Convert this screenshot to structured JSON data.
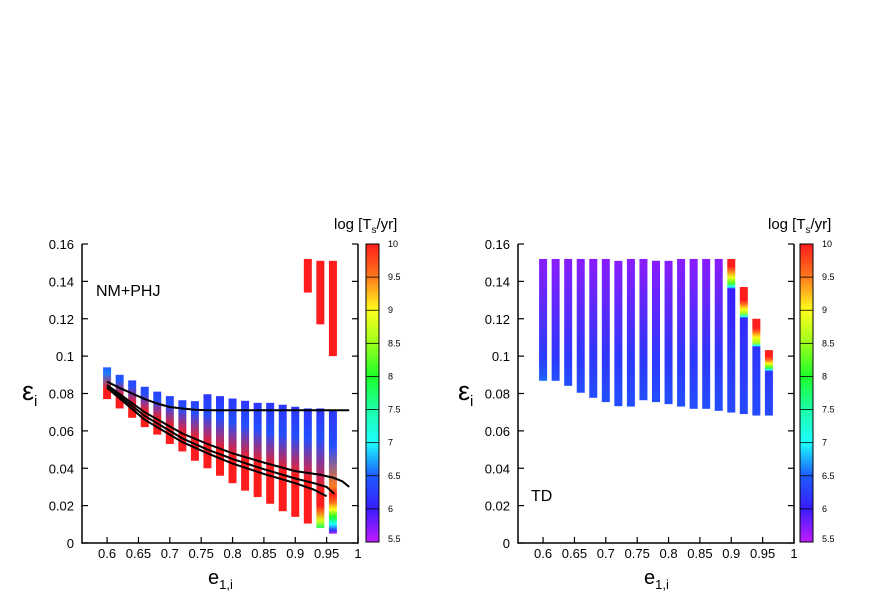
{
  "colormap": {
    "range": [
      5.5,
      10
    ],
    "stops": [
      [
        5.5,
        "#c01cff"
      ],
      [
        6.0,
        "#3a1cff"
      ],
      [
        6.5,
        "#1c5cff"
      ],
      [
        7.0,
        "#1cffff"
      ],
      [
        7.5,
        "#1cffa8"
      ],
      [
        8.0,
        "#1cff2a"
      ],
      [
        8.5,
        "#9cff1c"
      ],
      [
        9.0,
        "#ffff1c"
      ],
      [
        9.5,
        "#ff7a1c"
      ],
      [
        10.0,
        "#ff1c1c"
      ]
    ],
    "ticks": [
      "5.5",
      "6",
      "6.5",
      "7",
      "7.5",
      "8",
      "8.5",
      "9",
      "9.5",
      "10"
    ],
    "label": {
      "prefix": "log [T",
      "sub": "s",
      "suffix": "/yr]"
    }
  },
  "chart_data": [
    {
      "type": "bar",
      "panel_label": "NM+PHJ",
      "xlabel": {
        "main": "e",
        "sub": "1,i"
      },
      "ylabel": {
        "main": "ε",
        "sub": "i"
      },
      "xlim": [
        0.56,
        1.0
      ],
      "ylim": [
        0,
        0.16
      ],
      "xticks": [
        "0.6",
        "0.65",
        "0.7",
        "0.75",
        "0.8",
        "0.85",
        "0.9",
        "0.95",
        "1"
      ],
      "yticks": [
        "0",
        "0.02",
        "0.04",
        "0.06",
        "0.08",
        "0.1",
        "0.12",
        "0.14",
        "0.16"
      ],
      "bars": [
        {
          "e": 0.6,
          "profile": [
            [
              0.077,
              10
            ],
            [
              0.082,
              10
            ],
            [
              0.091,
              6.6
            ],
            [
              0.094,
              6.5
            ]
          ]
        },
        {
          "e": 0.62,
          "profile": [
            [
              0.072,
              10
            ],
            [
              0.078,
              10
            ],
            [
              0.087,
              6.5
            ],
            [
              0.09,
              6.4
            ]
          ]
        },
        {
          "e": 0.64,
          "profile": [
            [
              0.067,
              10
            ],
            [
              0.074,
              10
            ],
            [
              0.084,
              6.4
            ],
            [
              0.087,
              6.3
            ]
          ]
        },
        {
          "e": 0.66,
          "profile": [
            [
              0.062,
              10
            ],
            [
              0.07,
              10
            ],
            [
              0.08,
              6.4
            ],
            [
              0.0836,
              6.3
            ]
          ]
        },
        {
          "e": 0.68,
          "profile": [
            [
              0.058,
              10
            ],
            [
              0.066,
              10
            ],
            [
              0.077,
              6.4
            ],
            [
              0.081,
              6.3
            ]
          ]
        },
        {
          "e": 0.7,
          "profile": [
            [
              0.053,
              10
            ],
            [
              0.062,
              10
            ],
            [
              0.074,
              6.4
            ],
            [
              0.0786,
              6.3
            ]
          ]
        },
        {
          "e": 0.72,
          "profile": [
            [
              0.049,
              10
            ],
            [
              0.058,
              10
            ],
            [
              0.072,
              6.4
            ],
            [
              0.0764,
              6.3
            ]
          ]
        },
        {
          "e": 0.74,
          "profile": [
            [
              0.044,
              10
            ],
            [
              0.055,
              10
            ],
            [
              0.07,
              6.4
            ],
            [
              0.0759,
              6.3
            ]
          ]
        },
        {
          "e": 0.76,
          "profile": [
            [
              0.04,
              10
            ],
            [
              0.052,
              10
            ],
            [
              0.069,
              6.4
            ],
            [
              0.0796,
              6.2
            ]
          ]
        },
        {
          "e": 0.78,
          "profile": [
            [
              0.036,
              10
            ],
            [
              0.049,
              10
            ],
            [
              0.067,
              6.4
            ],
            [
              0.0786,
              6.2
            ]
          ]
        },
        {
          "e": 0.8,
          "profile": [
            [
              0.032,
              10
            ],
            [
              0.046,
              10
            ],
            [
              0.065,
              6.4
            ],
            [
              0.0773,
              6.2
            ]
          ]
        },
        {
          "e": 0.82,
          "profile": [
            [
              0.028,
              10
            ],
            [
              0.044,
              10
            ],
            [
              0.063,
              6.4
            ],
            [
              0.0761,
              6.2
            ]
          ]
        },
        {
          "e": 0.84,
          "profile": [
            [
              0.0246,
              10
            ],
            [
              0.042,
              10
            ],
            [
              0.061,
              6.4
            ],
            [
              0.075,
              6.2
            ]
          ]
        },
        {
          "e": 0.86,
          "profile": [
            [
              0.021,
              10
            ],
            [
              0.04,
              10
            ],
            [
              0.059,
              6.4
            ],
            [
              0.075,
              6.2
            ]
          ]
        },
        {
          "e": 0.88,
          "profile": [
            [
              0.017,
              10
            ],
            [
              0.038,
              10
            ],
            [
              0.058,
              6.4
            ],
            [
              0.074,
              6.2
            ]
          ]
        },
        {
          "e": 0.9,
          "profile": [
            [
              0.014,
              10
            ],
            [
              0.036,
              10
            ],
            [
              0.057,
              6.4
            ],
            [
              0.0729,
              6.2
            ]
          ]
        },
        {
          "e": 0.92,
          "profile": [
            [
              0.0104,
              10
            ],
            [
              0.033,
              10
            ],
            [
              0.056,
              6.4
            ],
            [
              0.072,
              6.2
            ]
          ]
        },
        {
          "e": 0.94,
          "profile": [
            [
              0.008,
              7.8
            ],
            [
              0.012,
              8.8
            ],
            [
              0.017,
              9.6
            ],
            [
              0.02,
              10
            ],
            [
              0.028,
              10
            ],
            [
              0.056,
              6.4
            ],
            [
              0.072,
              6.2
            ]
          ]
        },
        {
          "e": 0.96,
          "profile": [
            [
              0.005,
              5.6
            ],
            [
              0.007,
              6.3
            ],
            [
              0.01,
              7.0
            ],
            [
              0.014,
              8.0
            ],
            [
              0.018,
              9.0
            ],
            [
              0.022,
              9.6
            ],
            [
              0.026,
              10
            ],
            [
              0.03,
              9.5
            ],
            [
              0.052,
              6.4
            ],
            [
              0.071,
              6.2
            ]
          ]
        },
        {
          "e": 0.92,
          "profile": [
            [
              0.134,
              10
            ],
            [
              0.152,
              10
            ]
          ]
        },
        {
          "e": 0.94,
          "profile": [
            [
              0.117,
              10
            ],
            [
              0.151,
              10
            ]
          ]
        },
        {
          "e": 0.96,
          "profile": [
            [
              0.1,
              10
            ],
            [
              0.151,
              10
            ]
          ]
        }
      ],
      "curves": [
        {
          "points": [
            [
              0.6,
              0.0863
            ],
            [
              0.62,
              0.083
            ],
            [
              0.64,
              0.08
            ],
            [
              0.66,
              0.077
            ],
            [
              0.68,
              0.0746
            ],
            [
              0.7,
              0.0728
            ],
            [
              0.72,
              0.072
            ],
            [
              0.74,
              0.0713
            ],
            [
              0.76,
              0.071
            ],
            [
              0.8,
              0.071
            ],
            [
              0.9,
              0.071
            ],
            [
              0.986,
              0.071
            ]
          ]
        },
        {
          "points": [
            [
              0.6,
              0.0845
            ],
            [
              0.66,
              0.07
            ],
            [
              0.72,
              0.0586
            ],
            [
              0.76,
              0.053
            ],
            [
              0.8,
              0.048
            ],
            [
              0.85,
              0.043
            ],
            [
              0.9,
              0.0385
            ],
            [
              0.94,
              0.0365
            ],
            [
              0.96,
              0.035
            ],
            [
              0.975,
              0.033
            ],
            [
              0.986,
              0.03
            ]
          ]
        },
        {
          "points": [
            [
              0.6,
              0.0838
            ],
            [
              0.66,
              0.068
            ],
            [
              0.72,
              0.056
            ],
            [
              0.76,
              0.05
            ],
            [
              0.8,
              0.045
            ],
            [
              0.85,
              0.0395
            ],
            [
              0.9,
              0.0345
            ],
            [
              0.93,
              0.032
            ],
            [
              0.95,
              0.03
            ],
            [
              0.962,
              0.0264
            ]
          ]
        },
        {
          "points": [
            [
              0.6,
              0.083
            ],
            [
              0.66,
              0.066
            ],
            [
              0.72,
              0.054
            ],
            [
              0.76,
              0.048
            ],
            [
              0.8,
              0.0425
            ],
            [
              0.85,
              0.037
            ],
            [
              0.9,
              0.032
            ],
            [
              0.93,
              0.0285
            ],
            [
              0.95,
              0.025
            ]
          ]
        }
      ]
    },
    {
      "type": "bar",
      "panel_label": "TD",
      "xlabel": {
        "main": "e",
        "sub": "1,i"
      },
      "ylabel": {
        "main": "ε",
        "sub": "i"
      },
      "xlim": [
        0.56,
        1.0
      ],
      "ylim": [
        0,
        0.16
      ],
      "xticks": [
        "0.6",
        "0.65",
        "0.7",
        "0.75",
        "0.8",
        "0.85",
        "0.9",
        "0.95",
        "1"
      ],
      "yticks": [
        "0",
        "0.02",
        "0.04",
        "0.06",
        "0.08",
        "0.1",
        "0.12",
        "0.14",
        "0.16"
      ],
      "bars": [
        {
          "e": 0.6,
          "profile": [
            [
              0.0868,
              6.55
            ],
            [
              0.09,
              6.45
            ],
            [
              0.1,
              6.25
            ],
            [
              0.152,
              5.7
            ]
          ]
        },
        {
          "e": 0.62,
          "profile": [
            [
              0.0868,
              6.4
            ],
            [
              0.1,
              6.2
            ],
            [
              0.152,
              5.7
            ]
          ]
        },
        {
          "e": 0.64,
          "profile": [
            [
              0.0841,
              6.4
            ],
            [
              0.1,
              6.2
            ],
            [
              0.152,
              5.7
            ]
          ]
        },
        {
          "e": 0.66,
          "profile": [
            [
              0.0804,
              6.4
            ],
            [
              0.1,
              6.2
            ],
            [
              0.152,
              5.7
            ]
          ]
        },
        {
          "e": 0.68,
          "profile": [
            [
              0.0777,
              6.4
            ],
            [
              0.1,
              6.2
            ],
            [
              0.152,
              5.7
            ]
          ]
        },
        {
          "e": 0.7,
          "profile": [
            [
              0.0754,
              6.4
            ],
            [
              0.1,
              6.2
            ],
            [
              0.152,
              5.7
            ]
          ]
        },
        {
          "e": 0.72,
          "profile": [
            [
              0.0732,
              6.4
            ],
            [
              0.1,
              6.2
            ],
            [
              0.151,
              5.7
            ]
          ]
        },
        {
          "e": 0.74,
          "profile": [
            [
              0.073,
              6.4
            ],
            [
              0.1,
              6.2
            ],
            [
              0.152,
              5.7
            ]
          ]
        },
        {
          "e": 0.76,
          "profile": [
            [
              0.0764,
              6.4
            ],
            [
              0.1,
              6.2
            ],
            [
              0.152,
              5.7
            ]
          ]
        },
        {
          "e": 0.78,
          "profile": [
            [
              0.0754,
              6.4
            ],
            [
              0.1,
              6.2
            ],
            [
              0.151,
              5.7
            ]
          ]
        },
        {
          "e": 0.8,
          "profile": [
            [
              0.0743,
              6.4
            ],
            [
              0.1,
              6.2
            ],
            [
              0.151,
              5.7
            ]
          ]
        },
        {
          "e": 0.82,
          "profile": [
            [
              0.073,
              6.4
            ],
            [
              0.1,
              6.2
            ],
            [
              0.152,
              5.7
            ]
          ]
        },
        {
          "e": 0.84,
          "profile": [
            [
              0.0718,
              6.4
            ],
            [
              0.1,
              6.2
            ],
            [
              0.152,
              5.7
            ]
          ]
        },
        {
          "e": 0.86,
          "profile": [
            [
              0.0718,
              6.4
            ],
            [
              0.1,
              6.2
            ],
            [
              0.152,
              5.7
            ]
          ]
        },
        {
          "e": 0.88,
          "profile": [
            [
              0.0707,
              6.4
            ],
            [
              0.1,
              6.2
            ],
            [
              0.152,
              5.7
            ]
          ]
        },
        {
          "e": 0.9,
          "profile": [
            [
              0.0698,
              6.35
            ],
            [
              0.1,
              6.2
            ],
            [
              0.136,
              6.0
            ],
            [
              0.137,
              7.0
            ],
            [
              0.139,
              8.2
            ],
            [
              0.142,
              8.9
            ],
            [
              0.146,
              9.6
            ],
            [
              0.148,
              10
            ],
            [
              0.152,
              10
            ]
          ]
        },
        {
          "e": 0.92,
          "profile": [
            [
              0.069,
              6.35
            ],
            [
              0.1,
              6.2
            ],
            [
              0.1205,
              6.1
            ],
            [
              0.121,
              7.0
            ],
            [
              0.123,
              8.5
            ],
            [
              0.125,
              9.0
            ],
            [
              0.128,
              9.6
            ],
            [
              0.13,
              10
            ],
            [
              0.137,
              10
            ]
          ]
        },
        {
          "e": 0.94,
          "profile": [
            [
              0.0682,
              6.35
            ],
            [
              0.105,
              6.2
            ],
            [
              0.1055,
              7.0
            ],
            [
              0.107,
              8.5
            ],
            [
              0.11,
              9.0
            ],
            [
              0.113,
              9.6
            ],
            [
              0.115,
              10
            ],
            [
              0.12,
              10
            ]
          ]
        },
        {
          "e": 0.96,
          "profile": [
            [
              0.0682,
              6.35
            ],
            [
              0.092,
              6.2
            ],
            [
              0.0925,
              7.0
            ],
            [
              0.094,
              8.2
            ],
            [
              0.096,
              9.0
            ],
            [
              0.098,
              9.6
            ],
            [
              0.1,
              10
            ],
            [
              0.1032,
              10
            ]
          ]
        }
      ],
      "curves": []
    }
  ]
}
